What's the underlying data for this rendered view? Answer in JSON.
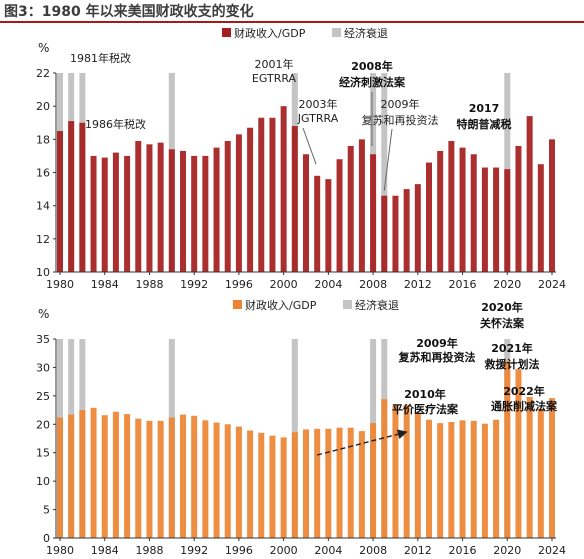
{
  "figure": {
    "title": "图3：1980 年以来美国财政收支的变化"
  },
  "colors": {
    "revenue": "#a51d1d",
    "expenditure": "#ec8432",
    "recession": "#c4c4c4",
    "title_rule": "#a31c1c",
    "axis": "#333333"
  },
  "chart_data": [
    {
      "type": "bar",
      "unit": "%",
      "ylim": [
        10,
        22
      ],
      "yticks": [
        10,
        12,
        14,
        16,
        18,
        20,
        22
      ],
      "xticks": [
        "1980",
        "1984",
        "1988",
        "1992",
        "1996",
        "2000",
        "2004",
        "2008",
        "2012",
        "2016",
        "2020",
        "2024"
      ],
      "categories": [
        1980,
        1981,
        1982,
        1983,
        1984,
        1985,
        1986,
        1987,
        1988,
        1989,
        1990,
        1991,
        1992,
        1993,
        1994,
        1995,
        1996,
        1997,
        1998,
        1999,
        2000,
        2001,
        2002,
        2003,
        2004,
        2005,
        2006,
        2007,
        2008,
        2009,
        2010,
        2011,
        2012,
        2013,
        2014,
        2015,
        2016,
        2017,
        2018,
        2019,
        2020,
        2021,
        2022,
        2023,
        2024
      ],
      "series": [
        {
          "name": "财政收入/GDP",
          "values": [
            18.5,
            19.1,
            19.0,
            17.0,
            16.9,
            17.2,
            17.0,
            17.9,
            17.7,
            17.8,
            17.4,
            17.3,
            17.0,
            17.0,
            17.5,
            17.9,
            18.3,
            18.7,
            19.3,
            19.3,
            20.0,
            18.8,
            17.1,
            15.8,
            15.6,
            16.8,
            17.6,
            18.0,
            17.1,
            14.6,
            14.6,
            15.0,
            15.3,
            16.6,
            17.3,
            17.9,
            17.5,
            17.1,
            16.3,
            16.3,
            16.2,
            17.6,
            19.4,
            16.5,
            18.0
          ]
        },
        {
          "name": "经济衰退",
          "years": [
            1980,
            1981,
            1982,
            1990,
            2001,
            2008,
            2009,
            2020
          ]
        }
      ],
      "legend": [
        "财政收入/GDP",
        "经济衰退"
      ],
      "legend_position": "top-right",
      "annotations": [
        {
          "text": "1981年税改",
          "bold": false
        },
        {
          "text": "1986年税改",
          "bold": false
        },
        {
          "text": "2001年",
          "bold": false
        },
        {
          "text": "EGTRRA",
          "bold": false
        },
        {
          "text": "2003年",
          "bold": false
        },
        {
          "text": "JGTRRA",
          "bold": false
        },
        {
          "text": "2008年",
          "bold": true
        },
        {
          "text": "经济刺激法案",
          "bold": true
        },
        {
          "text": "2009年",
          "bold": false
        },
        {
          "text": "复苏和再投资法",
          "bold": false
        },
        {
          "text": "2017",
          "bold": true
        },
        {
          "text": "特朗普减税",
          "bold": true
        }
      ]
    },
    {
      "type": "bar",
      "unit": "%",
      "ylim": [
        0,
        35
      ],
      "yticks": [
        0,
        5,
        10,
        15,
        20,
        25,
        30,
        35
      ],
      "xticks": [
        "1980",
        "1984",
        "1988",
        "1992",
        "1996",
        "2000",
        "2004",
        "2008",
        "2012",
        "2016",
        "2020",
        "2024"
      ],
      "categories": [
        1980,
        1981,
        1982,
        1983,
        1984,
        1985,
        1986,
        1987,
        1988,
        1989,
        1990,
        1991,
        1992,
        1993,
        1994,
        1995,
        1996,
        1997,
        1998,
        1999,
        2000,
        2001,
        2002,
        2003,
        2004,
        2005,
        2006,
        2007,
        2008,
        2009,
        2010,
        2011,
        2012,
        2013,
        2014,
        2015,
        2016,
        2017,
        2018,
        2019,
        2020,
        2021,
        2022,
        2023,
        2024
      ],
      "series": [
        {
          "name": "财政收入/GDP",
          "values": [
            21.2,
            21.7,
            22.5,
            22.9,
            21.6,
            22.2,
            21.8,
            21.0,
            20.6,
            20.6,
            21.2,
            21.7,
            21.5,
            20.7,
            20.3,
            20.0,
            19.6,
            18.9,
            18.5,
            18.0,
            17.7,
            18.6,
            19.1,
            19.2,
            19.2,
            19.4,
            19.4,
            18.8,
            20.2,
            24.4,
            23.3,
            23.4,
            22.0,
            20.8,
            20.2,
            20.4,
            20.7,
            20.6,
            20.1,
            20.8,
            31.1,
            29.7,
            24.8,
            22.7,
            24.6
          ]
        },
        {
          "name": "经济衰退",
          "years": [
            1980,
            1981,
            1982,
            1990,
            2001,
            2008,
            2009,
            2020
          ]
        }
      ],
      "legend": [
        "财政收入/GDP",
        "经济衰退"
      ],
      "legend_position": "top-center",
      "annotations": [
        {
          "text": "2009年",
          "bold": true
        },
        {
          "text": "复苏和再投资法",
          "bold": true
        },
        {
          "text": "2010年",
          "bold": true
        },
        {
          "text": "平价医疗法案",
          "bold": true
        },
        {
          "text": "2020年",
          "bold": true
        },
        {
          "text": "关怀法案",
          "bold": true
        },
        {
          "text": "2021年",
          "bold": true
        },
        {
          "text": "救援计划法",
          "bold": true
        },
        {
          "text": "2022年",
          "bold": true
        },
        {
          "text": "通胀削减法案",
          "bold": true
        }
      ],
      "trend_arrow": {
        "from_year": 2003,
        "to_year": 2011
      }
    }
  ]
}
